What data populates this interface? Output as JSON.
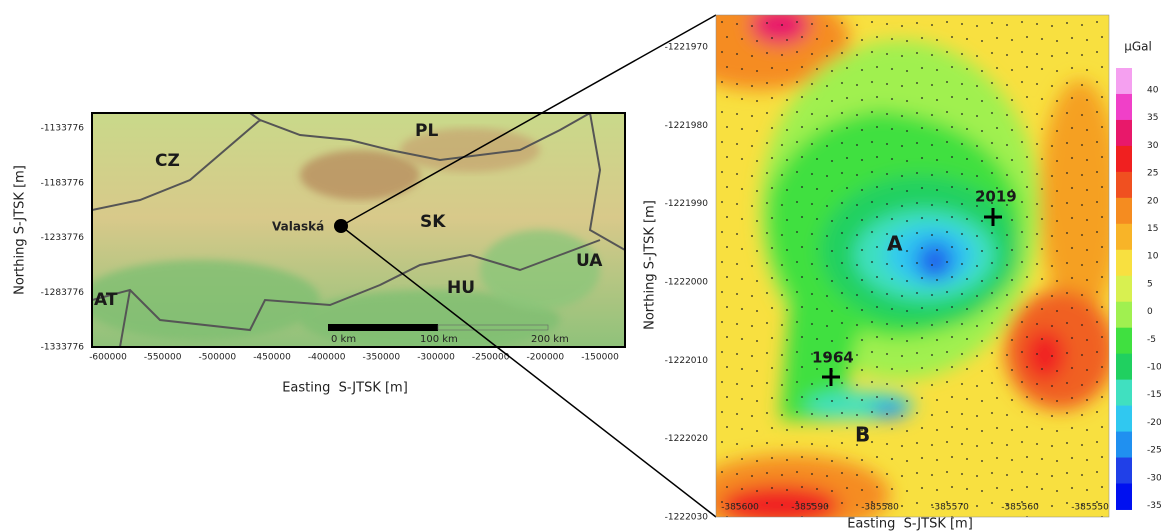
{
  "left_map": {
    "x_label": "Easting  S-JTSK [m]",
    "y_label": "Northing S-JTSK [m]",
    "yticks": [
      -1133776,
      -1183776,
      -1233776,
      -1283776,
      -1333776
    ],
    "xticks": [
      -600000,
      -550000,
      -500000,
      -450000,
      -400000,
      -350000,
      -300000,
      -250000,
      -200000,
      -150000
    ],
    "countries": [
      "CZ",
      "PL",
      "SK",
      "UA",
      "AT",
      "HU"
    ],
    "site": "Valaská",
    "scale_bar": [
      "0 km",
      "100 km",
      "200 km"
    ]
  },
  "right_map": {
    "x_label": "Easting  S-JTSK [m]",
    "y_label": "Northing S-JTSK [m]",
    "yticks": [
      -1221970,
      -1221980,
      -1221990,
      -1222000,
      -1222010,
      -1222020,
      -1222030
    ],
    "xticks": [
      -385600,
      -385590,
      -385580,
      -385570,
      -385560,
      -385550
    ],
    "anomalies": [
      "A",
      "B"
    ],
    "points": [
      "2019",
      "1964"
    ],
    "colorbar": {
      "unit": "µGal",
      "ticks": [
        40,
        35,
        30,
        25,
        20,
        15,
        10,
        5,
        0,
        -5,
        -10,
        -15,
        -20,
        -25,
        -30,
        -35
      ]
    }
  }
}
